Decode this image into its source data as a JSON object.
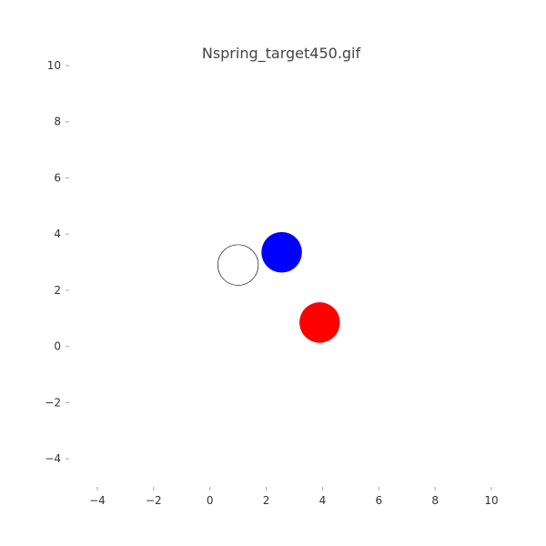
{
  "chart_data": {
    "type": "scatter",
    "title": "Nspring_target450.gif",
    "xlabel": "",
    "ylabel": "",
    "xlim": [
      -5,
      10
    ],
    "ylim": [
      -5,
      10
    ],
    "xticks": [
      -4,
      -2,
      0,
      2,
      4,
      6,
      8,
      10
    ],
    "yticks": [
      -4,
      -2,
      0,
      2,
      4,
      6,
      8,
      10
    ],
    "xtick_labels": [
      "−4",
      "−2",
      "0",
      "2",
      "4",
      "6",
      "8",
      "10"
    ],
    "ytick_labels": [
      "−4",
      "−2",
      "0",
      "2",
      "4",
      "6",
      "8",
      "10"
    ],
    "grid": false,
    "points": [
      {
        "x": 1.0,
        "y": 2.9,
        "r": 0.72,
        "fill": "none",
        "stroke": "#000000"
      },
      {
        "x": 2.55,
        "y": 3.35,
        "r": 0.72,
        "fill": "#0000ff",
        "stroke": "none"
      },
      {
        "x": 3.9,
        "y": 0.85,
        "r": 0.72,
        "fill": "#ff0000",
        "stroke": "none"
      }
    ]
  }
}
